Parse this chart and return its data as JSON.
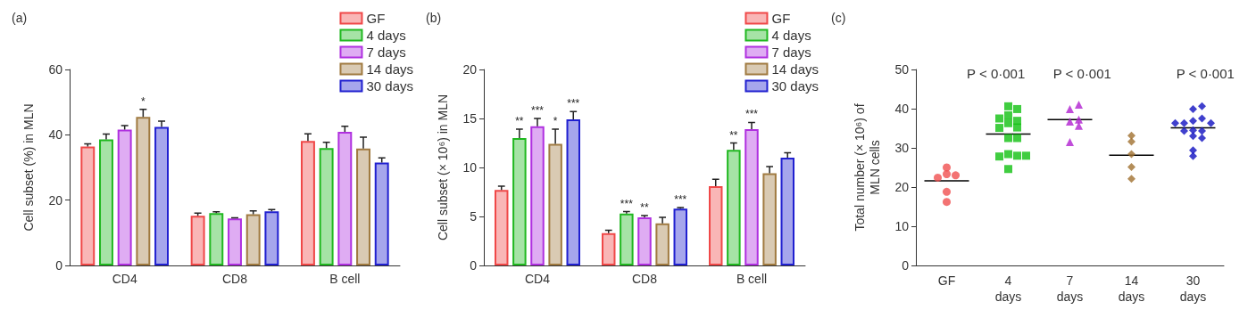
{
  "chart_data": [
    {
      "type": "bar",
      "title": "(a)",
      "ylabel": "Cell subset (%) in MLN",
      "categories": [
        "CD4",
        "CD8",
        "B cell"
      ],
      "ylim": [
        0,
        60
      ],
      "yticks": [
        0,
        20,
        40,
        60
      ],
      "grid": false,
      "legend": "top right",
      "series": [
        {
          "name": "GF",
          "color": "#f04848",
          "values": [
            36.4,
            15.2,
            38.1
          ],
          "errors": [
            [
              36.4,
              37.2
            ],
            [
              15.2,
              16.0
            ],
            [
              38.1,
              40.3
            ]
          ]
        },
        {
          "name": "4 days",
          "color": "#20b820",
          "values": [
            38.6,
            16.0,
            35.9
          ],
          "errors": [
            [
              38.6,
              40.2
            ],
            [
              16.0,
              16.4
            ],
            [
              35.9,
              37.7
            ]
          ]
        },
        {
          "name": "7 days",
          "color": "#b030e0",
          "values": [
            41.6,
            14.4,
            40.9
          ],
          "errors": [
            [
              41.6,
              42.8
            ],
            [
              14.4,
              14.6
            ],
            [
              40.9,
              42.6
            ]
          ]
        },
        {
          "name": "14 days",
          "color": "#a07a40",
          "values": [
            45.5,
            15.7,
            35.8
          ],
          "errors": [
            [
              45.5,
              47.8
            ],
            [
              15.7,
              16.7
            ],
            [
              35.8,
              39.3
            ]
          ],
          "value_labels": [
            "*",
            null,
            null
          ]
        },
        {
          "name": "30 days",
          "color": "#2020d0",
          "values": [
            42.4,
            16.6,
            31.5
          ],
          "errors": [
            [
              42.4,
              44.2
            ],
            [
              16.6,
              17.1
            ],
            [
              31.5,
              32.9
            ]
          ]
        }
      ]
    },
    {
      "type": "bar",
      "title": "(b)",
      "ylabel": "Cell subset (× 10⁶) in MLN",
      "categories": [
        "CD4",
        "CD8",
        "B cell"
      ],
      "ylim": [
        0,
        20
      ],
      "yticks": [
        0,
        5,
        10,
        15,
        20
      ],
      "grid": false,
      "legend": "top right",
      "series": [
        {
          "name": "GF",
          "color": "#f04848",
          "values": [
            7.7,
            3.3,
            8.1
          ],
          "errors": [
            [
              7.7,
              8.1
            ],
            [
              3.3,
              3.6
            ],
            [
              8.1,
              8.8
            ]
          ]
        },
        {
          "name": "4 days",
          "color": "#20b820",
          "values": [
            13.0,
            5.3,
            11.8
          ],
          "errors": [
            [
              13.0,
              13.9
            ],
            [
              5.3,
              5.5
            ],
            [
              11.8,
              12.5
            ]
          ],
          "value_labels": [
            "**",
            "***",
            "**"
          ]
        },
        {
          "name": "7 days",
          "color": "#b030e0",
          "values": [
            14.2,
            4.9,
            13.9
          ],
          "errors": [
            [
              14.2,
              15.0
            ],
            [
              4.9,
              5.1
            ],
            [
              13.9,
              14.6
            ]
          ],
          "value_labels": [
            "***",
            "**",
            "***"
          ]
        },
        {
          "name": "14 days",
          "color": "#a07a40",
          "values": [
            12.4,
            4.3,
            9.4
          ],
          "errors": [
            [
              12.4,
              13.9
            ],
            [
              4.3,
              4.9
            ],
            [
              9.4,
              10.1
            ]
          ],
          "value_labels": [
            "*",
            null,
            null
          ]
        },
        {
          "name": "30 days",
          "color": "#2020d0",
          "values": [
            14.9,
            5.8,
            11.0
          ],
          "errors": [
            [
              14.9,
              15.7
            ],
            [
              5.8,
              5.9
            ],
            [
              11.0,
              11.5
            ]
          ],
          "value_labels": [
            "***",
            "***",
            null
          ]
        }
      ]
    },
    {
      "type": "scatter",
      "title": "(c)",
      "ylabel": "Total number (× 10⁶) of\nMLN cells",
      "categories": [
        "GF",
        "4\ndays",
        "7\ndays",
        "14\ndays",
        "30\ndays"
      ],
      "ylim": [
        0,
        50
      ],
      "yticks": [
        0,
        10,
        20,
        30,
        40,
        50
      ],
      "grid": false,
      "legend": false,
      "annotations": [
        "P < 0·001",
        "P < 0·001",
        "P < 0·001"
      ],
      "series": [
        {
          "color": "#f05050",
          "marker": "circle",
          "x": [
            "GF",
            "GF",
            "GF",
            "GF",
            "GF",
            "GF"
          ],
          "values": [
            25.0,
            23.3,
            23.0,
            22.4,
            18.8,
            16.2
          ]
        },
        {
          "color": "#10c010",
          "marker": "square",
          "x": [
            "4\ndays",
            "4\ndays",
            "4\ndays",
            "4\ndays",
            "4\ndays",
            "4\ndays",
            "4\ndays",
            "4\ndays",
            "4\ndays",
            "4\ndays",
            "4\ndays",
            "4\ndays",
            "4\ndays",
            "4\ndays",
            "4\ndays"
          ],
          "values": [
            40.6,
            39.9,
            38.3,
            36.9,
            37.5,
            36.3,
            35.2,
            35.1,
            32.5,
            32.5,
            28.4,
            28.0,
            27.8,
            28.0,
            24.6
          ]
        },
        {
          "color": "#b020d0",
          "marker": "triangle",
          "x": [
            "7\ndays",
            "7\ndays",
            "7\ndays",
            "7\ndays",
            "7\ndays",
            "7\ndays"
          ],
          "values": [
            39.9,
            41.0,
            36.7,
            37.2,
            35.6,
            31.5
          ]
        },
        {
          "color": "#a07030",
          "marker": "diamond",
          "x": [
            "14\ndays",
            "14\ndays",
            "14\ndays",
            "14\ndays",
            "14\ndays"
          ],
          "values": [
            33.1,
            31.6,
            28.4,
            25.1,
            22.1
          ]
        },
        {
          "color": "#1010c0",
          "marker": "diamond",
          "x": [
            "30\ndays",
            "30\ndays",
            "30\ndays",
            "30\ndays",
            "30\ndays",
            "30\ndays",
            "30\ndays",
            "30\ndays",
            "30\ndays",
            "30\ndays",
            "30\ndays",
            "30\ndays",
            "30\ndays",
            "30\ndays"
          ],
          "values": [
            39.9,
            40.6,
            36.9,
            37.5,
            36.3,
            36.3,
            36.3,
            34.5,
            34.3,
            34.3,
            33.0,
            32.5,
            29.4,
            27.9
          ]
        },
        {
          "type": "box",
          "color": "#000000",
          "boxes": [
            {
              "low": 21.6,
              "q1": 21.6,
              "median": 21.6,
              "q3": 21.6,
              "high": 21.6
            },
            {
              "low": 33.5,
              "q1": 33.5,
              "median": 33.5,
              "q3": 33.5,
              "high": 33.5
            },
            {
              "low": 37.2,
              "q1": 37.2,
              "median": 37.2,
              "q3": 37.2,
              "high": 37.2
            },
            {
              "low": 28.1,
              "q1": 28.1,
              "median": 28.1,
              "q3": 28.1,
              "high": 28.1
            },
            {
              "low": 35.1,
              "q1": 35.1,
              "median": 35.1,
              "q3": 35.1,
              "high": 35.1
            }
          ]
        }
      ]
    }
  ]
}
